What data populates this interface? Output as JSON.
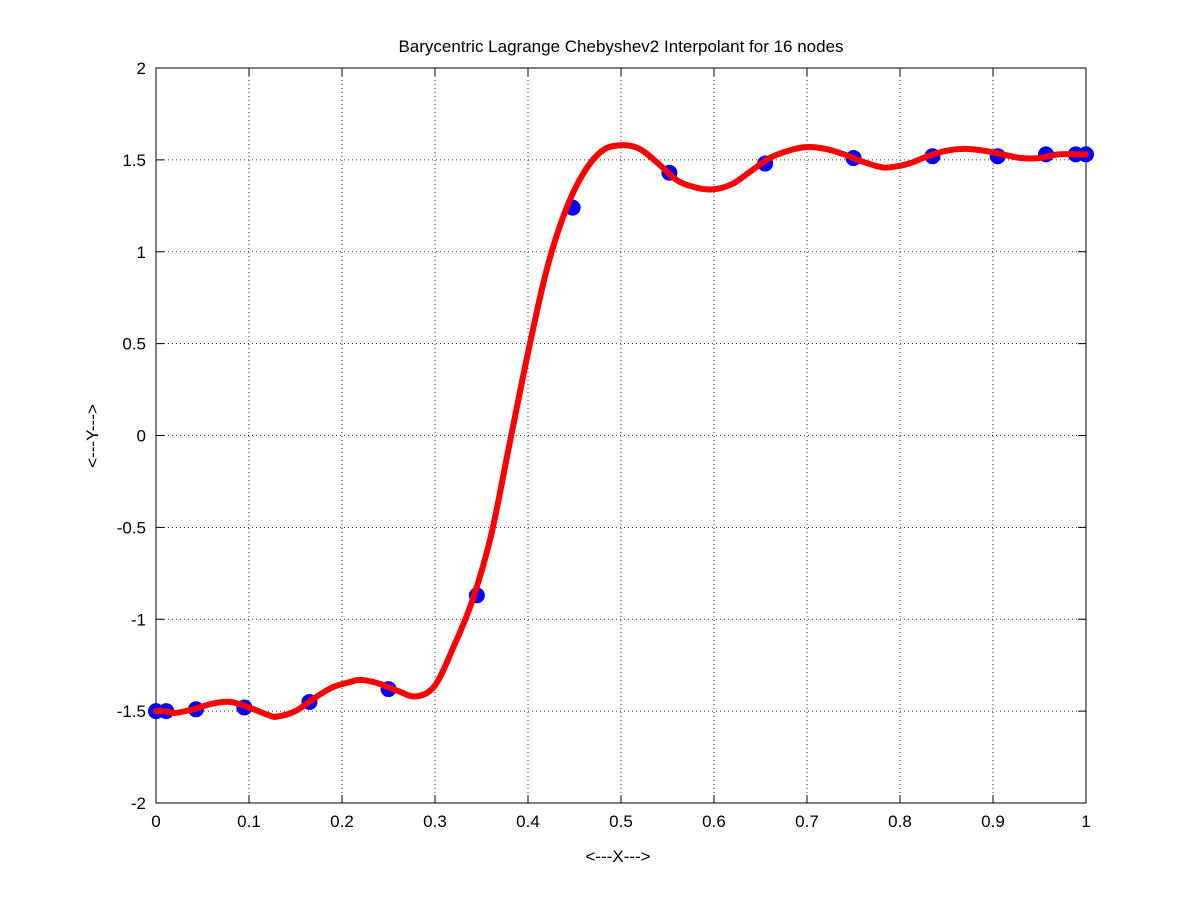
{
  "chart_data": {
    "type": "line",
    "title": "Barycentric Lagrange Chebyshev2 Interpolant for 16 nodes",
    "xlabel": "<---X--->",
    "ylabel": "<---Y--->",
    "xlim": [
      0,
      1
    ],
    "ylim": [
      -2,
      2
    ],
    "grid": true,
    "x_ticks": [
      0,
      0.1,
      0.2,
      0.3,
      0.4,
      0.5,
      0.6,
      0.7,
      0.8,
      0.9,
      1
    ],
    "x_tick_labels": [
      "0",
      "0.1",
      "0.2",
      "0.3",
      "0.4",
      "0.5",
      "0.6",
      "0.7",
      "0.8",
      "0.9",
      "1"
    ],
    "y_ticks": [
      -2,
      -1.5,
      -1,
      -0.5,
      0,
      0.5,
      1,
      1.5,
      2
    ],
    "y_tick_labels": [
      "-2",
      "-1.5",
      "-1",
      "-0.5",
      "0",
      "0.5",
      "1",
      "1.5",
      "2"
    ],
    "series": [
      {
        "kind": "markers",
        "color": "#0000ff",
        "x": [
          0,
          0.011,
          0.043,
          0.095,
          0.165,
          0.25,
          0.345,
          0.448,
          0.552,
          0.655,
          0.75,
          0.835,
          0.905,
          0.957,
          0.989,
          1
        ],
        "y": [
          -1.5,
          -1.5,
          -1.49,
          -1.48,
          -1.45,
          -1.38,
          -0.87,
          1.24,
          1.43,
          1.48,
          1.51,
          1.52,
          1.52,
          1.53,
          1.53,
          1.53
        ]
      },
      {
        "kind": "line",
        "color": "#ff0000",
        "x": [
          0,
          0.01,
          0.02,
          0.04,
          0.06,
          0.08,
          0.1,
          0.12,
          0.13,
          0.15,
          0.17,
          0.19,
          0.21,
          0.22,
          0.24,
          0.26,
          0.28,
          0.3,
          0.32,
          0.34,
          0.36,
          0.38,
          0.4,
          0.42,
          0.44,
          0.46,
          0.48,
          0.5,
          0.52,
          0.54,
          0.56,
          0.58,
          0.6,
          0.62,
          0.64,
          0.66,
          0.68,
          0.7,
          0.72,
          0.74,
          0.76,
          0.78,
          0.79,
          0.81,
          0.83,
          0.85,
          0.87,
          0.89,
          0.91,
          0.93,
          0.95,
          0.97,
          0.99,
          1
        ],
        "y": [
          -1.5,
          -1.5,
          -1.51,
          -1.49,
          -1.46,
          -1.45,
          -1.48,
          -1.52,
          -1.53,
          -1.5,
          -1.43,
          -1.37,
          -1.34,
          -1.33,
          -1.35,
          -1.39,
          -1.42,
          -1.36,
          -1.15,
          -0.9,
          -0.55,
          -0.05,
          0.45,
          0.9,
          1.22,
          1.43,
          1.55,
          1.58,
          1.56,
          1.48,
          1.39,
          1.35,
          1.34,
          1.37,
          1.44,
          1.51,
          1.55,
          1.57,
          1.56,
          1.53,
          1.49,
          1.46,
          1.46,
          1.48,
          1.52,
          1.55,
          1.56,
          1.55,
          1.53,
          1.51,
          1.51,
          1.53,
          1.53,
          1.53
        ]
      }
    ]
  }
}
